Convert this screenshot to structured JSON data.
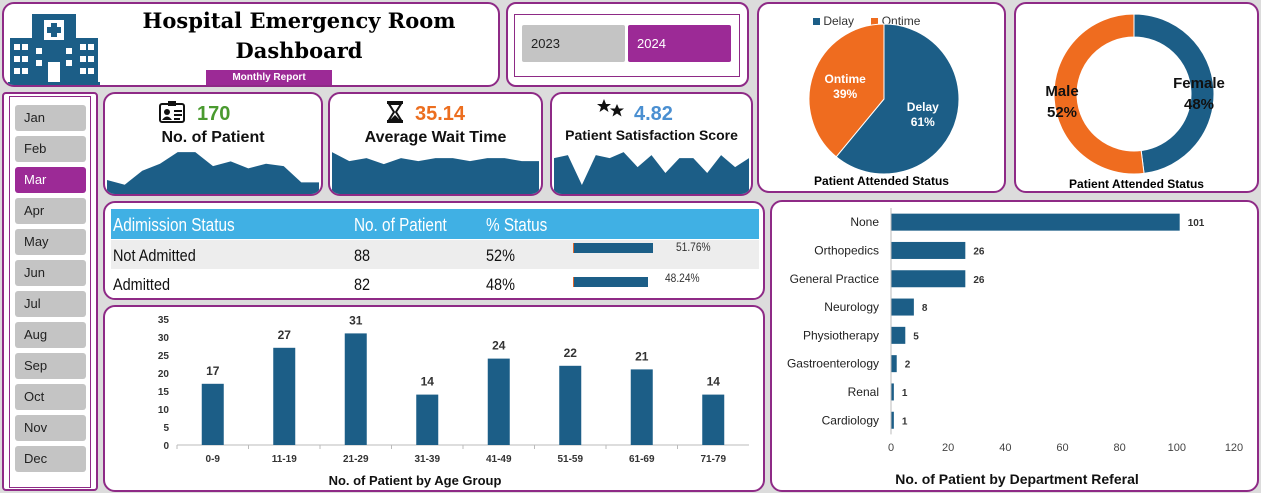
{
  "header": {
    "title_line1": "Hospital Emergency Room",
    "title_line2": "Dashboard",
    "subtitle": "Monthly Report",
    "logo_icon": "hospital-icon"
  },
  "years": {
    "items": [
      "2023",
      "2024"
    ],
    "selected": "2024"
  },
  "months": {
    "items": [
      "Jan",
      "Feb",
      "Mar",
      "Apr",
      "May",
      "Jun",
      "Jul",
      "Aug",
      "Sep",
      "Oct",
      "Nov",
      "Dec"
    ],
    "selected": "Mar"
  },
  "kpis": {
    "patients": {
      "value": "170",
      "label": "No. of Patient",
      "color": "#4a9a2f",
      "icon": "patient-id-card-icon",
      "spark": [
        6,
        4,
        10,
        13,
        18,
        18,
        12,
        14,
        11,
        13,
        12,
        5,
        5
      ]
    },
    "wait": {
      "value": "35.14",
      "label": "Average Wait Time",
      "color": "#ec6e1f",
      "icon": "hourglass-icon",
      "spark": [
        14,
        11,
        12,
        10,
        12,
        11,
        12,
        12,
        11,
        12,
        12,
        11,
        11
      ]
    },
    "satisfaction": {
      "value": "4.82",
      "label": "Patient Satisfaction Score",
      "color": "#4a8fd1",
      "icon": "stars-icon",
      "spark": [
        12,
        13,
        3,
        13,
        12,
        14,
        9,
        13,
        7,
        12,
        12,
        7,
        13,
        9,
        12
      ]
    }
  },
  "delay_pie": {
    "title": "Patient Attended Status",
    "legend": [
      {
        "name": "Delay",
        "color": "#1c5e87"
      },
      {
        "name": "Ontime",
        "color": "#ef6c1f"
      }
    ],
    "slices": [
      {
        "name": "Delay",
        "label": "Delay",
        "percent": "61%",
        "value": 61,
        "color": "#1c5e87"
      },
      {
        "name": "Ontime",
        "label": "Ontime",
        "percent": "39%",
        "value": 39,
        "color": "#ef6c1f"
      }
    ]
  },
  "gender_donut": {
    "title": "Patient Attended Status",
    "slices": [
      {
        "name": "Female",
        "label": "Female",
        "percent": "48%",
        "value": 48,
        "color": "#1c5e87"
      },
      {
        "name": "Male",
        "label": "Male",
        "percent": "52%",
        "value": 52,
        "color": "#ef6c1f"
      }
    ]
  },
  "admission_table": {
    "headers": [
      "Adimission Status",
      "No. of Patient",
      "% Status"
    ],
    "rows": [
      {
        "status": "Not Admitted",
        "count": "88",
        "pct": "52%",
        "bar_value": 51.76,
        "bar_label": "51.76%"
      },
      {
        "status": "Admitted",
        "count": "82",
        "pct": "48%",
        "bar_value": 48.24,
        "bar_label": "48.24%"
      }
    ],
    "bar_color": "#1c5e87"
  },
  "chart_data": [
    {
      "type": "bar",
      "title": "No. of Patient by Age Group",
      "categories": [
        "0-9",
        "11-19",
        "21-29",
        "31-39",
        "41-49",
        "51-59",
        "61-69",
        "71-79"
      ],
      "values": [
        17,
        27,
        31,
        14,
        24,
        22,
        21,
        14
      ],
      "ylim": [
        0,
        35
      ],
      "yticks": [
        "0",
        "5",
        "10",
        "15",
        "20",
        "25",
        "30",
        "35"
      ],
      "color": "#1c5e87"
    },
    {
      "type": "bar",
      "orientation": "horizontal",
      "title": "No. of Patient by Department Referal",
      "categories": [
        "None",
        "Orthopedics",
        "General Practice",
        "Neurology",
        "Physiotherapy",
        "Gastroenterology",
        "Renal",
        "Cardiology"
      ],
      "values": [
        101,
        26,
        26,
        8,
        5,
        2,
        1,
        1
      ],
      "xlim": [
        0,
        120
      ],
      "xticks": [
        "0",
        "20",
        "40",
        "60",
        "80",
        "100",
        "120"
      ],
      "color": "#1c5e87"
    }
  ]
}
